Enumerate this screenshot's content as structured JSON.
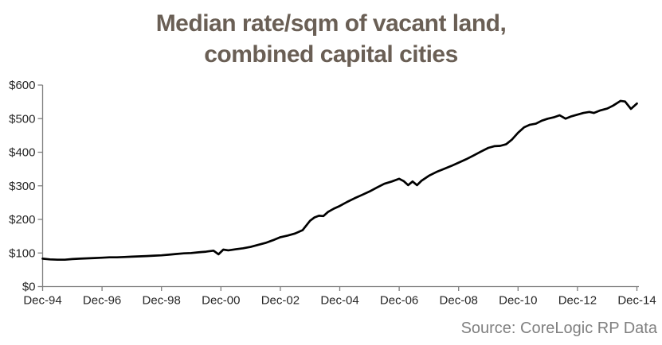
{
  "header": {
    "title_line1": "Median rate/sqm of vacant land,",
    "title_line2": "combined capital cities"
  },
  "footer": {
    "source": "Source: CoreLogic RP Data"
  },
  "colors": {
    "title": "#6a5f55",
    "series_line": "#000000",
    "axis_line": "#7f7f7f",
    "tick_label": "#262626",
    "source_text": "#808080",
    "background": "#ffffff"
  },
  "chart_data": {
    "type": "line",
    "title": "Median rate/sqm of vacant land, combined capital cities",
    "xlabel": "",
    "ylabel": "",
    "grid": "off",
    "legend": "none",
    "y_axis": {
      "min": 0,
      "max": 600,
      "tick_interval": 100,
      "ticks": [
        {
          "value": 0,
          "label": "$0"
        },
        {
          "value": 100,
          "label": "$100"
        },
        {
          "value": 200,
          "label": "$200"
        },
        {
          "value": 300,
          "label": "$300"
        },
        {
          "value": 400,
          "label": "$400"
        },
        {
          "value": 500,
          "label": "$500"
        },
        {
          "value": 600,
          "label": "$600"
        }
      ]
    },
    "x_axis": {
      "unit": "years since Dec-1994",
      "min": 0,
      "max": 20,
      "ticks": [
        {
          "t": 0,
          "label": "Dec-94"
        },
        {
          "t": 2,
          "label": "Dec-96"
        },
        {
          "t": 4,
          "label": "Dec-98"
        },
        {
          "t": 6,
          "label": "Dec-00"
        },
        {
          "t": 8,
          "label": "Dec-02"
        },
        {
          "t": 10,
          "label": "Dec-04"
        },
        {
          "t": 12,
          "label": "Dec-06"
        },
        {
          "t": 14,
          "label": "Dec-08"
        },
        {
          "t": 16,
          "label": "Dec-10"
        },
        {
          "t": 18,
          "label": "Dec-12"
        },
        {
          "t": 20,
          "label": "Dec-14"
        }
      ]
    },
    "series": [
      {
        "name": "Median rate/sqm of vacant land",
        "points": [
          [
            0,
            83
          ],
          [
            0.25,
            81
          ],
          [
            0.5,
            80
          ],
          [
            0.75,
            80
          ],
          [
            1,
            82
          ],
          [
            1.25,
            83
          ],
          [
            1.5,
            84
          ],
          [
            1.75,
            85
          ],
          [
            2,
            86
          ],
          [
            2.25,
            87
          ],
          [
            2.5,
            87
          ],
          [
            2.75,
            88
          ],
          [
            3,
            89
          ],
          [
            3.25,
            90
          ],
          [
            3.5,
            91
          ],
          [
            3.75,
            92
          ],
          [
            4,
            93
          ],
          [
            4.25,
            95
          ],
          [
            4.5,
            97
          ],
          [
            4.75,
            99
          ],
          [
            5,
            100
          ],
          [
            5.25,
            102
          ],
          [
            5.5,
            104
          ],
          [
            5.75,
            107
          ],
          [
            5.92,
            96
          ],
          [
            6.08,
            110
          ],
          [
            6.25,
            108
          ],
          [
            6.5,
            111
          ],
          [
            6.75,
            114
          ],
          [
            7,
            118
          ],
          [
            7.25,
            124
          ],
          [
            7.5,
            130
          ],
          [
            7.75,
            138
          ],
          [
            8,
            147
          ],
          [
            8.25,
            152
          ],
          [
            8.5,
            158
          ],
          [
            8.75,
            168
          ],
          [
            9,
            196
          ],
          [
            9.15,
            206
          ],
          [
            9.3,
            211
          ],
          [
            9.45,
            210
          ],
          [
            9.6,
            222
          ],
          [
            9.8,
            232
          ],
          [
            10,
            240
          ],
          [
            10.25,
            252
          ],
          [
            10.5,
            263
          ],
          [
            10.75,
            273
          ],
          [
            11,
            283
          ],
          [
            11.25,
            295
          ],
          [
            11.5,
            306
          ],
          [
            11.75,
            313
          ],
          [
            12,
            321
          ],
          [
            12.15,
            314
          ],
          [
            12.3,
            302
          ],
          [
            12.45,
            313
          ],
          [
            12.6,
            302
          ],
          [
            12.75,
            315
          ],
          [
            13,
            330
          ],
          [
            13.25,
            341
          ],
          [
            13.5,
            350
          ],
          [
            13.75,
            359
          ],
          [
            14,
            369
          ],
          [
            14.25,
            379
          ],
          [
            14.5,
            390
          ],
          [
            14.75,
            402
          ],
          [
            15,
            413
          ],
          [
            15.2,
            418
          ],
          [
            15.4,
            419
          ],
          [
            15.6,
            424
          ],
          [
            15.8,
            438
          ],
          [
            16,
            458
          ],
          [
            16.2,
            474
          ],
          [
            16.4,
            482
          ],
          [
            16.6,
            485
          ],
          [
            16.8,
            494
          ],
          [
            17,
            500
          ],
          [
            17.2,
            504
          ],
          [
            17.4,
            510
          ],
          [
            17.6,
            500
          ],
          [
            17.8,
            507
          ],
          [
            18,
            512
          ],
          [
            18.2,
            517
          ],
          [
            18.4,
            520
          ],
          [
            18.55,
            517
          ],
          [
            18.75,
            524
          ],
          [
            19,
            530
          ],
          [
            19.2,
            539
          ],
          [
            19.45,
            553
          ],
          [
            19.6,
            551
          ],
          [
            19.8,
            529
          ],
          [
            20,
            545
          ]
        ]
      }
    ]
  }
}
